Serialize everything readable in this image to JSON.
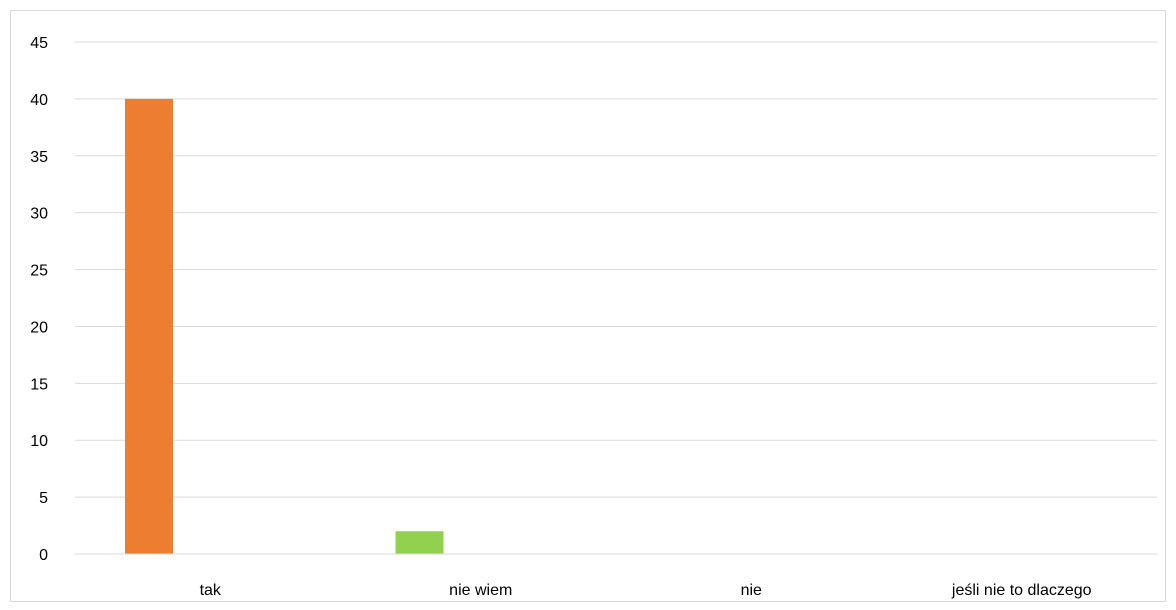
{
  "chart_data": {
    "type": "bar",
    "title": "",
    "xlabel": "",
    "ylabel": "",
    "categories": [
      "tak",
      "nie wiem",
      "nie",
      "jeśli nie to dlaczego"
    ],
    "series": [
      {
        "values": [
          40,
          2,
          0,
          0
        ],
        "colors": [
          "#ED7D31",
          "#92D050",
          "#A5A5A5",
          "#FFC000"
        ]
      }
    ],
    "ylim": [
      0,
      45
    ],
    "yticks": [
      0,
      5,
      10,
      15,
      20,
      25,
      30,
      35,
      40,
      45
    ],
    "grid": true,
    "gridline_color": "#d9d9d9",
    "legend": "none"
  }
}
